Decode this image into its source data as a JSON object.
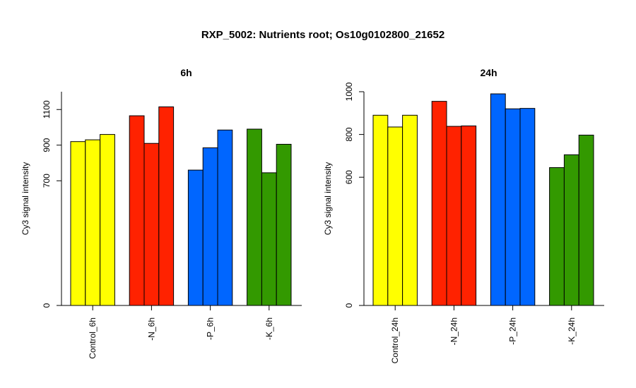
{
  "chart_data": {
    "title": "RXP_5002: Nutrients root; Os10g0102800_21652",
    "panels": [
      {
        "type": "bar",
        "title": "6h",
        "ylabel": "Cy3 signal intensity",
        "ylim": [
          0,
          1200
        ],
        "yticks": [
          {
            "value": 0,
            "label": "0"
          },
          {
            "value": 700,
            "label": "700"
          },
          {
            "value": 900,
            "label": "900"
          },
          {
            "value": 1100,
            "label": "1100"
          }
        ],
        "groups": [
          {
            "label": "Control_6h",
            "color": "#ffff00",
            "values": [
              920,
              930,
              960
            ]
          },
          {
            "label": "-N_6h",
            "color": "#ff2200",
            "values": [
              1065,
              910,
              1115
            ]
          },
          {
            "label": "-P_6h",
            "color": "#0066ff",
            "values": [
              760,
              885,
              985
            ]
          },
          {
            "label": "-K_6h",
            "color": "#339900",
            "values": [
              990,
              745,
              905
            ]
          }
        ]
      },
      {
        "type": "bar",
        "title": "24h",
        "ylabel": "Cy3 signal intensity",
        "ylim": [
          0,
          1000
        ],
        "yticks": [
          {
            "value": 0,
            "label": "0"
          },
          {
            "value": 600,
            "label": "600"
          },
          {
            "value": 800,
            "label": "800"
          },
          {
            "value": 1000,
            "label": "1000"
          }
        ],
        "groups": [
          {
            "label": "Control_24h",
            "color": "#ffff00",
            "values": [
              890,
              835,
              890
            ]
          },
          {
            "label": "-N_24h",
            "color": "#ff2200",
            "values": [
              955,
              838,
              840
            ]
          },
          {
            "label": "-P_24h",
            "color": "#0066ff",
            "values": [
              990,
              920,
              922
            ]
          },
          {
            "label": "-K_24h",
            "color": "#339900",
            "values": [
              645,
              705,
              797
            ]
          }
        ]
      }
    ]
  }
}
